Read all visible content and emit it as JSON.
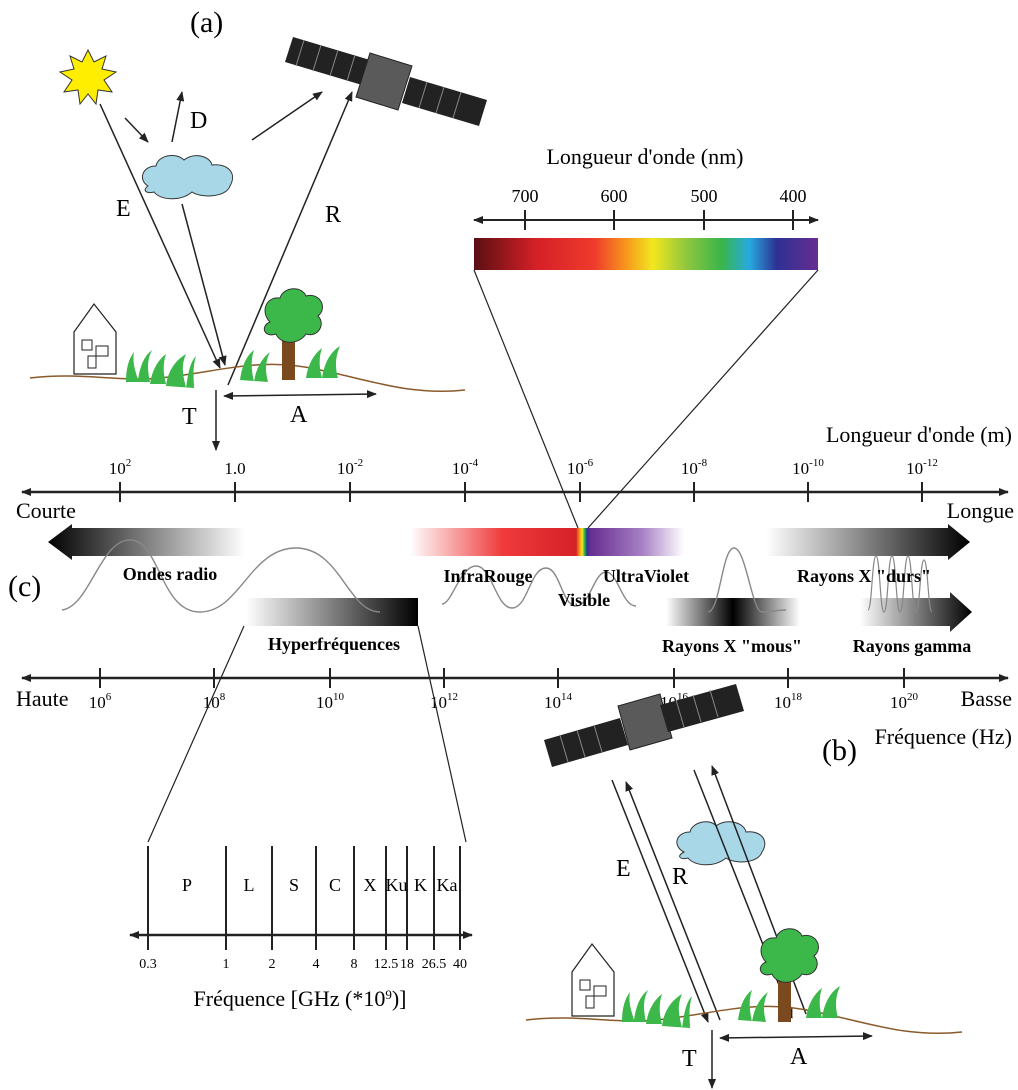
{
  "panels": {
    "a": "(a)",
    "b": "(b)",
    "c": "(c)"
  },
  "scene_labels": {
    "E": "E",
    "D": "D",
    "R": "R",
    "T": "T",
    "A": "A"
  },
  "visible_scale": {
    "title": "Longueur d'onde (nm)",
    "ticks": [
      "700",
      "600",
      "500",
      "400"
    ]
  },
  "wavelength_axis": {
    "title": "Longueur d'onde (m)",
    "left": "Courte",
    "right": "Longue",
    "ticks": [
      {
        "base": "10",
        "exp": "2"
      },
      {
        "base": "1.0",
        "exp": ""
      },
      {
        "base": "10",
        "exp": "-2"
      },
      {
        "base": "10",
        "exp": "-4"
      },
      {
        "base": "10",
        "exp": "-6"
      },
      {
        "base": "10",
        "exp": "-8"
      },
      {
        "base": "10",
        "exp": "-10"
      },
      {
        "base": "10",
        "exp": "-12"
      }
    ]
  },
  "frequency_axis": {
    "title": "Fréquence (Hz)",
    "left": "Haute",
    "right": "Basse",
    "ticks": [
      {
        "base": "10",
        "exp": "6"
      },
      {
        "base": "10",
        "exp": "8"
      },
      {
        "base": "10",
        "exp": "10"
      },
      {
        "base": "10",
        "exp": "12"
      },
      {
        "base": "10",
        "exp": "14"
      },
      {
        "base": "10",
        "exp": "16"
      },
      {
        "base": "10",
        "exp": "18"
      },
      {
        "base": "10",
        "exp": "20"
      }
    ]
  },
  "bands": {
    "radio": "Ondes radio",
    "infrared": "InfraRouge",
    "visible": "Visible",
    "ultraviolet": "UltraViolet",
    "hard_xray": "Rayons X \"durs\"",
    "microwave": "Hyperfréquences",
    "soft_xray": "Rayons X \"mous\"",
    "gamma": "Rayons gamma"
  },
  "microwave_bands": {
    "letters": [
      "P",
      "L",
      "S",
      "C",
      "X",
      "Ku",
      "K",
      "Ka"
    ],
    "ticks": [
      "0.3",
      "1",
      "2",
      "4",
      "8",
      "12.5",
      "18",
      "26.5",
      "40"
    ],
    "title_prefix": "Fréquence [GHz (*10",
    "title_exp": "9",
    "title_suffix": ")]"
  },
  "colors": {
    "sun": "#ffee00",
    "cloud": "#a8d8e8",
    "grass": "#3cb84a",
    "tree_canopy": "#3cb84a",
    "tree_trunk": "#7a4a1e",
    "ground": "#8b5a2b",
    "satellite_body": "#555555",
    "satellite_panel": "#222222"
  }
}
